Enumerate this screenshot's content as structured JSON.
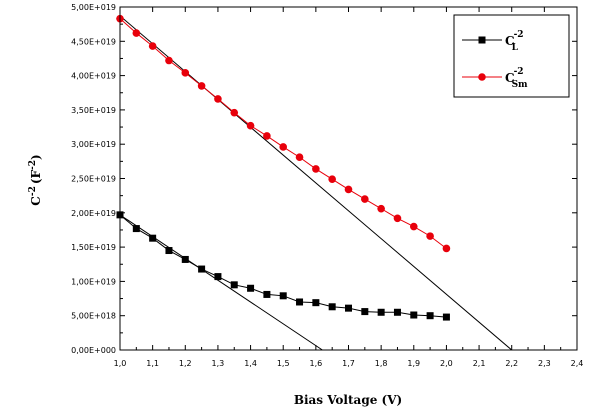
{
  "chart_data": {
    "type": "line",
    "title": "",
    "xlabel": "Bias Voltage (V)",
    "ylabel": "C",
    "ylabel_sup": "-2",
    "ylabel_unit": "(F",
    "ylabel_unit_sup": "-2",
    "ylabel_close": ")",
    "xlim": [
      1.0,
      2.4
    ],
    "ylim": [
      0,
      5e+19
    ],
    "xticks": [
      1.0,
      1.1,
      1.2,
      1.3,
      1.4,
      1.5,
      1.6,
      1.7,
      1.8,
      1.9,
      2.0,
      2.1,
      2.2,
      2.3,
      2.4
    ],
    "xtick_labels": [
      "1,0",
      "1,1",
      "1,2",
      "1,3",
      "1,4",
      "1,5",
      "1,6",
      "1,7",
      "1,8",
      "1,9",
      "2,0",
      "2,1",
      "2,2",
      "2,3",
      "2,4"
    ],
    "yticks": [
      0,
      5e+18,
      1e+19,
      1.5e+19,
      2e+19,
      2.5e+19,
      3e+19,
      3.5e+19,
      4e+19,
      4.5e+19,
      5e+19
    ],
    "ytick_labels": [
      "0,00E+000",
      "5,00E+018",
      "1,00E+019",
      "1,50E+019",
      "2,00E+019",
      "2,50E+019",
      "3,00E+019",
      "3,50E+019",
      "4,00E+019",
      "4,50E+019",
      "5,00E+019"
    ],
    "grid": false,
    "legend_position": "top-right",
    "series": [
      {
        "name": "C",
        "name_sup": "-2",
        "name_sub": "L",
        "color": "#000000",
        "marker": "square",
        "x": [
          1.0,
          1.05,
          1.1,
          1.15,
          1.2,
          1.25,
          1.3,
          1.35,
          1.4,
          1.45,
          1.5,
          1.55,
          1.6,
          1.65,
          1.7,
          1.75,
          1.8,
          1.85,
          1.9,
          1.95,
          2.0
        ],
        "y": [
          1.97e+19,
          1.77e+19,
          1.63e+19,
          1.45e+19,
          1.32e+19,
          1.18e+19,
          1.07e+19,
          9.5e+18,
          9e+18,
          8.1e+18,
          7.9e+18,
          7e+18,
          6.9e+18,
          6.3e+18,
          6.1e+18,
          5.6e+18,
          5.5e+18,
          5.5e+18,
          5.1e+18,
          5e+18,
          4.8e+18
        ]
      },
      {
        "name": "C",
        "name_sup": "-2",
        "name_sub": "Sm",
        "color": "#e8000b",
        "marker": "circle",
        "x": [
          1.0,
          1.05,
          1.1,
          1.15,
          1.2,
          1.25,
          1.3,
          1.35,
          1.4,
          1.45,
          1.5,
          1.55,
          1.6,
          1.65,
          1.7,
          1.75,
          1.8,
          1.85,
          1.9,
          1.95,
          2.0
        ],
        "y": [
          4.83e+19,
          4.62e+19,
          4.43e+19,
          4.22e+19,
          4.04e+19,
          3.85e+19,
          3.66e+19,
          3.46e+19,
          3.27e+19,
          3.12e+19,
          2.96e+19,
          2.81e+19,
          2.64e+19,
          2.49e+19,
          2.34e+19,
          2.2e+19,
          2.06e+19,
          1.92e+19,
          1.8e+19,
          1.66e+19,
          1.48e+19
        ]
      }
    ],
    "fit_lines": [
      {
        "color": "#000000",
        "x": [
          1.0,
          1.62
        ],
        "y": [
          1.97e+19,
          0
        ]
      },
      {
        "color": "#000000",
        "x": [
          1.0,
          2.2
        ],
        "y": [
          4.87e+19,
          0
        ]
      }
    ]
  }
}
